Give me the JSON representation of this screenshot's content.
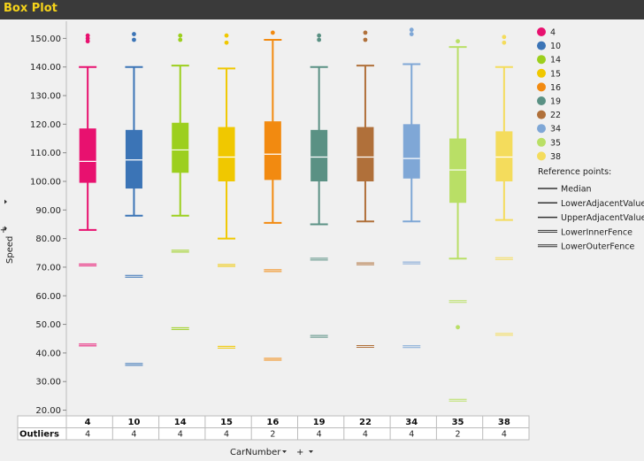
{
  "title": "Box Plot",
  "chart_data": {
    "type": "box",
    "xlabel": "CarNumber",
    "ylabel": "Speed",
    "ylim": [
      18,
      156
    ],
    "yticks": [
      "150.00",
      "140.00",
      "130.00",
      "120.00",
      "110.00",
      "100.00",
      "90.00",
      "80.00",
      "70.00",
      "60.00",
      "50.00",
      "40.00",
      "30.00",
      "20.00"
    ],
    "categories": [
      "4",
      "10",
      "14",
      "15",
      "16",
      "19",
      "22",
      "34",
      "35",
      "38"
    ],
    "series": [
      {
        "name": "4",
        "color": "#e8116f",
        "min": 83,
        "q1": 99.5,
        "median": 107,
        "q3": 118.5,
        "max": 140,
        "outliers": [
          149,
          150,
          151
        ],
        "lower_inner_fence": 70.8,
        "lower_outer_fence": 42.8
      },
      {
        "name": "10",
        "color": "#3b74b6",
        "min": 88,
        "q1": 97.5,
        "median": 107.5,
        "q3": 118,
        "max": 140,
        "outliers": [
          149.5,
          151.5
        ],
        "lower_inner_fence": 66.8,
        "lower_outer_fence": 36
      },
      {
        "name": "14",
        "color": "#9ccf1e",
        "min": 88,
        "q1": 103,
        "median": 111,
        "q3": 120.5,
        "max": 140.5,
        "outliers": [
          149.5,
          151
        ],
        "lower_inner_fence": 75.6,
        "lower_outer_fence": 48.5
      },
      {
        "name": "15",
        "color": "#f0c800",
        "min": 80,
        "q1": 100,
        "median": 108.5,
        "q3": 119,
        "max": 139.5,
        "outliers": [
          148.5,
          151
        ],
        "lower_inner_fence": 70.6,
        "lower_outer_fence": 42
      },
      {
        "name": "16",
        "color": "#f28a10",
        "min": 85.5,
        "q1": 100.5,
        "median": 109.5,
        "q3": 121,
        "max": 149.5,
        "outliers": [
          152
        ],
        "lower_inner_fence": 68.8,
        "lower_outer_fence": 37.8
      },
      {
        "name": "19",
        "color": "#5a9184",
        "min": 85,
        "q1": 100,
        "median": 108.5,
        "q3": 118,
        "max": 140,
        "outliers": [
          149.5,
          151
        ],
        "lower_inner_fence": 72.8,
        "lower_outer_fence": 45.8
      },
      {
        "name": "22",
        "color": "#b0703a",
        "min": 86,
        "q1": 100,
        "median": 108.5,
        "q3": 119,
        "max": 140.5,
        "outliers": [
          149.5,
          152
        ],
        "lower_inner_fence": 71.2,
        "lower_outer_fence": 42.3
      },
      {
        "name": "34",
        "color": "#7fa7d6",
        "min": 86,
        "q1": 101,
        "median": 108,
        "q3": 120,
        "max": 141,
        "outliers": [
          151.5,
          153
        ],
        "lower_inner_fence": 71.5,
        "lower_outer_fence": 42.2
      },
      {
        "name": "35",
        "color": "#b9df66",
        "min": 73,
        "q1": 92.5,
        "median": 104,
        "q3": 115,
        "max": 147,
        "outliers": [
          149,
          49
        ],
        "lower_inner_fence": 58,
        "lower_outer_fence": 23.5
      },
      {
        "name": "38",
        "color": "#f4dc5c",
        "min": 86.5,
        "q1": 100,
        "median": 108.5,
        "q3": 117.5,
        "max": 140,
        "outliers": [
          148.5,
          150.5
        ],
        "lower_inner_fence": 73,
        "lower_outer_fence": 46.5
      }
    ],
    "outlier_counts": [
      "4",
      "4",
      "4",
      "4",
      "2",
      "4",
      "4",
      "4",
      "2",
      "4"
    ],
    "table_row_label": "Outliers",
    "legend": {
      "position": "right",
      "reference_points_title": "Reference points:",
      "reference_points": [
        "Median",
        "LowerAdjacentValue",
        "UpperAdjacentValue",
        "LowerInnerFence",
        "LowerOuterFence"
      ]
    }
  }
}
